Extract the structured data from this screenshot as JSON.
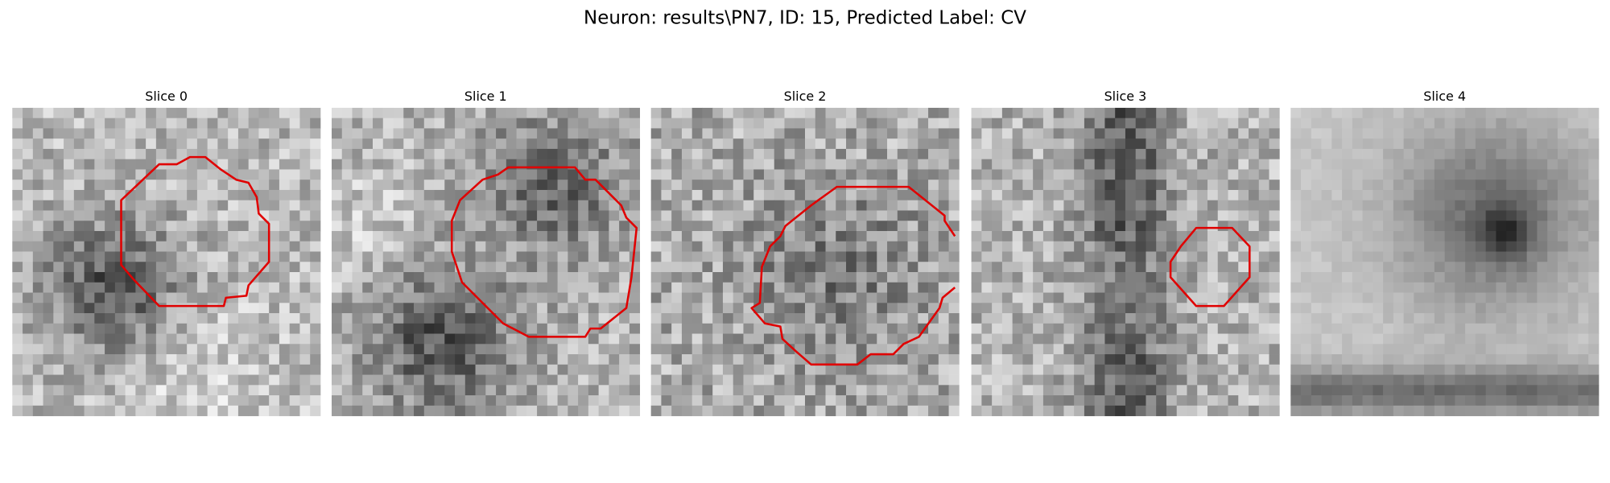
{
  "title": "Neuron: results\\PN7, ID: 15, Predicted Label: CV",
  "panels": [
    {
      "title": "Slice 0"
    },
    {
      "title": "Slice 1"
    },
    {
      "title": "Slice 2"
    },
    {
      "title": "Slice 3"
    },
    {
      "title": "Slice 4"
    }
  ]
}
